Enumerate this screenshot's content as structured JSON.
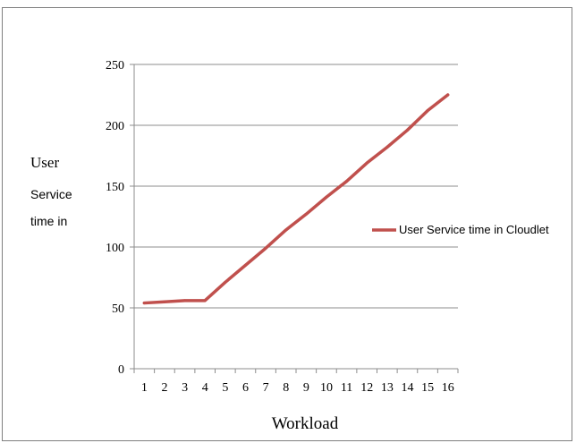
{
  "chart_data": {
    "type": "line",
    "title": "",
    "xlabel": "Workload",
    "ylabel_lines": [
      "User",
      "Service",
      "time in"
    ],
    "categories": [
      "1",
      "2",
      "3",
      "4",
      "5",
      "6",
      "7",
      "8",
      "9",
      "10",
      "11",
      "12",
      "13",
      "14",
      "15",
      "16"
    ],
    "series": [
      {
        "name": "User Service time in Cloudlet",
        "color": "#c0504d",
        "values": [
          54,
          55,
          56,
          56,
          71,
          85,
          99,
          114,
          127,
          141,
          154,
          169,
          182,
          196,
          212,
          225
        ]
      }
    ],
    "yticks": [
      0,
      50,
      100,
      150,
      200,
      250
    ],
    "ylim": [
      0,
      250
    ],
    "grid": "horizontal",
    "legend_position": "right"
  }
}
